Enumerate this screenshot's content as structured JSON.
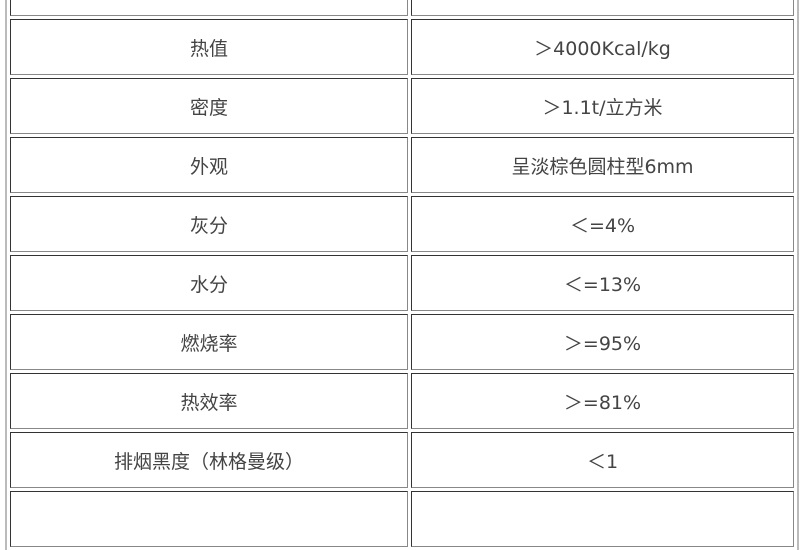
{
  "table": {
    "rows": [
      {
        "property": "",
        "value": ""
      },
      {
        "property": "热值",
        "value": "＞4000Kcal/kg"
      },
      {
        "property": "密度",
        "value": "＞1.1t/立方米"
      },
      {
        "property": "外观",
        "value": "呈淡棕色圆柱型6mm"
      },
      {
        "property": "灰分",
        "value": "＜=4%"
      },
      {
        "property": "水分",
        "value": "＜=13%"
      },
      {
        "property": "燃烧率",
        "value": "＞=95%"
      },
      {
        "property": "热效率",
        "value": "＞=81%"
      },
      {
        "property": "排烟黑度（林格曼级）",
        "value": "＜1"
      },
      {
        "property": "",
        "value": ""
      }
    ]
  }
}
